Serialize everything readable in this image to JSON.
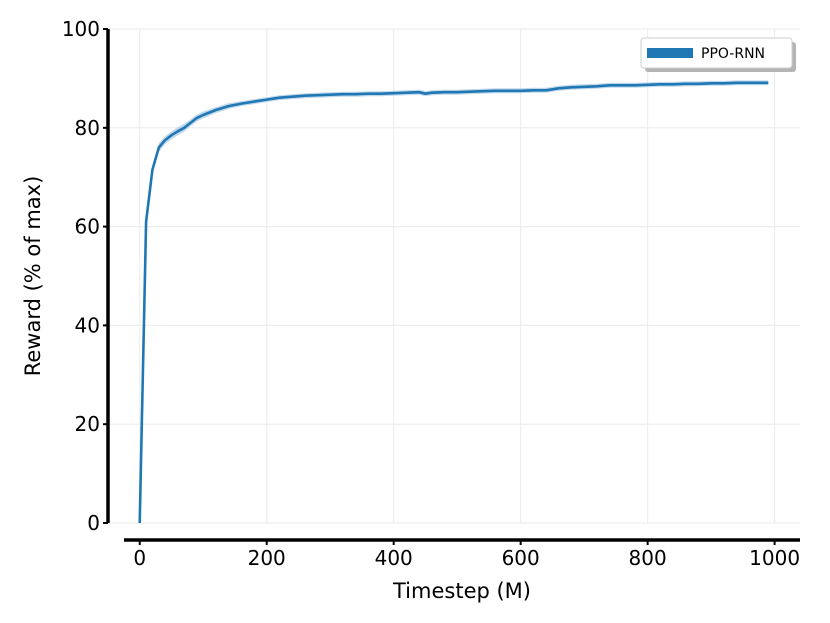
{
  "chart_data": {
    "type": "line",
    "title": "",
    "xlabel": "Timestep (M)",
    "ylabel": "Reward (% of max)",
    "xlim": [
      -50,
      1040
    ],
    "ylim": [
      0,
      100
    ],
    "xticks": [
      0,
      200,
      400,
      600,
      800,
      1000
    ],
    "yticks": [
      0,
      20,
      40,
      60,
      80,
      100
    ],
    "grid": true,
    "legend_position": "top-right",
    "series": [
      {
        "name": "PPO-RNN",
        "color": "#1f77b4",
        "band_color": "#a6c8e3",
        "x": [
          0,
          10,
          20,
          30,
          40,
          50,
          60,
          70,
          80,
          90,
          100,
          120,
          140,
          160,
          180,
          200,
          220,
          240,
          260,
          280,
          300,
          320,
          340,
          360,
          380,
          400,
          420,
          440,
          450,
          460,
          480,
          500,
          520,
          540,
          560,
          580,
          600,
          620,
          640,
          650,
          660,
          680,
          700,
          720,
          740,
          760,
          780,
          800,
          820,
          840,
          860,
          880,
          900,
          920,
          940,
          960,
          980,
          990
        ],
        "y": [
          0,
          61,
          71.5,
          76,
          77.5,
          78.5,
          79.3,
          80,
          81,
          82,
          82.6,
          83.6,
          84.4,
          84.9,
          85.3,
          85.7,
          86.1,
          86.3,
          86.5,
          86.6,
          86.7,
          86.8,
          86.8,
          86.9,
          86.9,
          87,
          87.1,
          87.2,
          86.9,
          87.1,
          87.2,
          87.2,
          87.3,
          87.4,
          87.5,
          87.5,
          87.5,
          87.6,
          87.6,
          87.8,
          88,
          88.2,
          88.3,
          88.4,
          88.6,
          88.6,
          88.6,
          88.7,
          88.8,
          88.8,
          88.9,
          88.9,
          89,
          89,
          89.1,
          89.1,
          89.1,
          89.1
        ],
        "spread": [
          0,
          1.2,
          1.0,
          0.9,
          0.8,
          0.8,
          0.8,
          0.8,
          0.7,
          0.7,
          0.7,
          0.6,
          0.6,
          0.5,
          0.5,
          0.5,
          0.5,
          0.5,
          0.5,
          0.5,
          0.5,
          0.5,
          0.5,
          0.5,
          0.5,
          0.5,
          0.5,
          0.5,
          0.5,
          0.5,
          0.5,
          0.5,
          0.5,
          0.5,
          0.5,
          0.5,
          0.5,
          0.5,
          0.5,
          0.5,
          0.5,
          0.5,
          0.5,
          0.5,
          0.5,
          0.5,
          0.5,
          0.5,
          0.5,
          0.5,
          0.5,
          0.5,
          0.5,
          0.5,
          0.5,
          0.5,
          0.5,
          0.5
        ]
      }
    ]
  }
}
